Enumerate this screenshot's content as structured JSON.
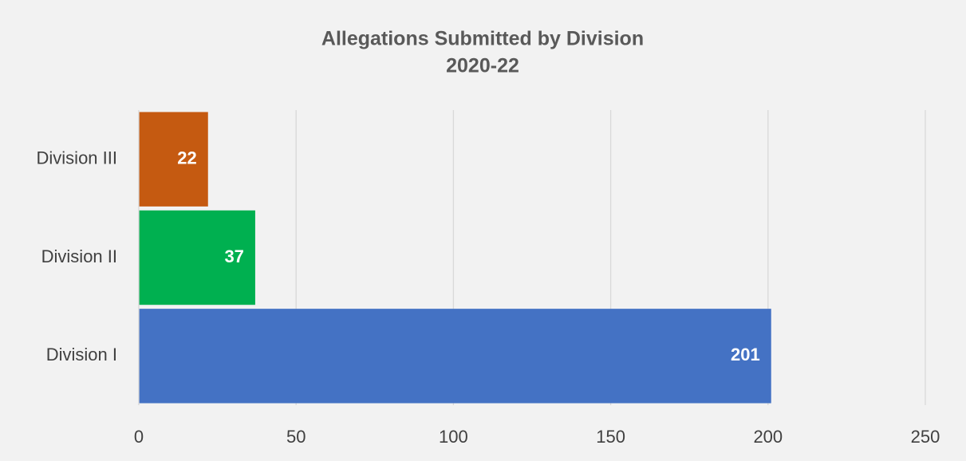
{
  "chart_data": {
    "type": "hbar",
    "title": "Allegations Submitted by Division",
    "subtitle": "2020-22",
    "categories": [
      "Division I",
      "Division II",
      "Division III"
    ],
    "values": [
      201,
      37,
      22
    ],
    "colors": [
      "#4472c4",
      "#00b050",
      "#c55a11"
    ],
    "xlim": [
      0,
      250
    ],
    "xticks": [
      0,
      50,
      100,
      150,
      200,
      250
    ],
    "grid": true
  }
}
